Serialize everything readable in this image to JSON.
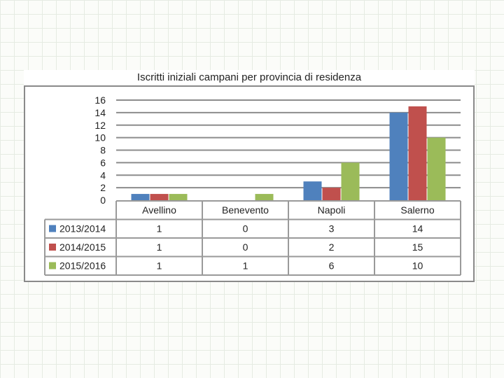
{
  "chart_data": {
    "type": "bar",
    "title": "Iscritti iniziali campani per provincia di residenza",
    "categories": [
      "Avellino",
      "Benevento",
      "Napoli",
      "Salerno"
    ],
    "series": [
      {
        "name": "2013/2014",
        "values": [
          1,
          0,
          3,
          14
        ],
        "color": "#4f81bd"
      },
      {
        "name": "2014/2015",
        "values": [
          1,
          0,
          2,
          15
        ],
        "color": "#c0504d"
      },
      {
        "name": "2015/2016",
        "values": [
          1,
          1,
          6,
          10
        ],
        "color": "#9bbb59"
      }
    ],
    "ylim": [
      0,
      16
    ],
    "yticks": [
      0,
      2,
      4,
      6,
      8,
      10,
      12,
      14,
      16
    ],
    "grid": true,
    "legend": "data-table"
  }
}
